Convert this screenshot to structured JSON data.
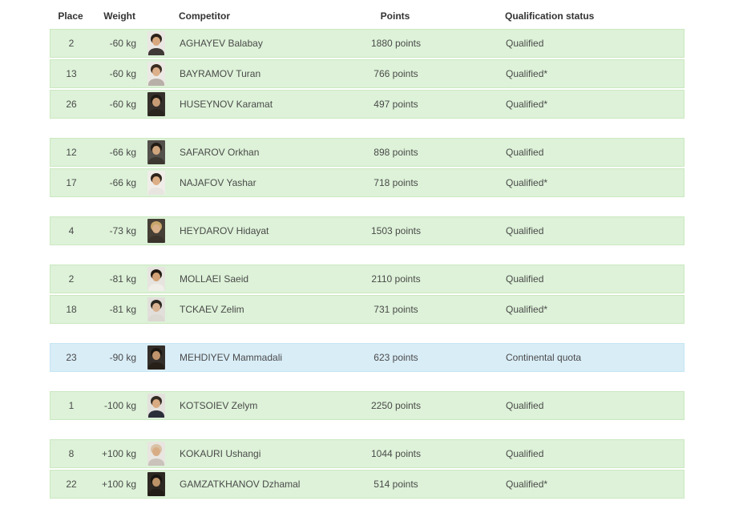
{
  "colors": {
    "page_background": "#ffffff",
    "row_success_bg": "#ddf2d8",
    "row_success_border": "#cbe8c0",
    "row_info_bg": "#d9edf7",
    "row_info_border": "#c3e6f2",
    "header_text": "#333333",
    "body_text": "#4a4a4a"
  },
  "table": {
    "headers": {
      "place": "Place",
      "weight": "Weight",
      "competitor": "Competitor",
      "points": "Points",
      "status": "Qualification status"
    },
    "sections": [
      {
        "weight_class": "-60 kg",
        "rows": [
          {
            "place": "2",
            "weight": "-60 kg",
            "name": "AGHAYEV Balabay",
            "points": "1880 points",
            "status": "Qualified",
            "variant": "success",
            "photo": {
              "bg": "#eae6e2",
              "hair": "#2b2119",
              "skin": "#d8a87f",
              "shirt": "#3f3a36"
            }
          },
          {
            "place": "13",
            "weight": "-60 kg",
            "name": "BAYRAMOV Turan",
            "points": "766 points",
            "status": "Qualified*",
            "variant": "success",
            "photo": {
              "bg": "#ece9e5",
              "hair": "#3a2c20",
              "skin": "#dcb08a",
              "shirt": "#b8b0a8"
            }
          },
          {
            "place": "26",
            "weight": "-60 kg",
            "name": "HUSEYNOV Karamat",
            "points": "497 points",
            "status": "Qualified*",
            "variant": "success",
            "photo": {
              "bg": "#35302b",
              "hair": "#1f1a15",
              "skin": "#c69c77",
              "shirt": "#2a251f"
            }
          }
        ]
      },
      {
        "weight_class": "-66 kg",
        "rows": [
          {
            "place": "12",
            "weight": "-66 kg",
            "name": "SAFAROV Orkhan",
            "points": "898 points",
            "status": "Qualified",
            "variant": "success",
            "photo": {
              "bg": "#54504b",
              "hair": "#231c15",
              "skin": "#cfa57d",
              "shirt": "#3d3831"
            }
          },
          {
            "place": "17",
            "weight": "-66 kg",
            "name": "NAJAFOV Yashar",
            "points": "718 points",
            "status": "Qualified*",
            "variant": "success",
            "photo": {
              "bg": "#f0ede9",
              "hair": "#2e241b",
              "skin": "#dcae85",
              "shirt": "#e8e4df"
            }
          }
        ]
      },
      {
        "weight_class": "-73 kg",
        "rows": [
          {
            "place": "4",
            "weight": "-73 kg",
            "name": "HEYDAROV Hidayat",
            "points": "1503 points",
            "status": "Qualified",
            "variant": "success",
            "photo": {
              "bg": "#453f36",
              "hair": "#c7a66a",
              "skin": "#d8b089",
              "shirt": "#3a342c"
            }
          }
        ]
      },
      {
        "weight_class": "-81 kg",
        "rows": [
          {
            "place": "2",
            "weight": "-81 kg",
            "name": "MOLLAEI Saeid",
            "points": "2110 points",
            "status": "Qualified",
            "variant": "success",
            "photo": {
              "bg": "#e7e4e0",
              "hair": "#221a12",
              "skin": "#d3a276",
              "shirt": "#f0eee9"
            }
          },
          {
            "place": "18",
            "weight": "-81 kg",
            "name": "TCKAEV Zelim",
            "points": "731 points",
            "status": "Qualified*",
            "variant": "success",
            "photo": {
              "bg": "#e2dfdb",
              "hair": "#2c2620",
              "skin": "#d9b292",
              "shirt": "#dcd8d2"
            }
          }
        ]
      },
      {
        "weight_class": "-90 kg",
        "rows": [
          {
            "place": "23",
            "weight": "-90 kg",
            "name": "MEHDIYEV Mammadali",
            "points": "623 points",
            "status": "Continental quota",
            "variant": "info",
            "photo": {
              "bg": "#332e29",
              "hair": "#1c1712",
              "skin": "#c0946c",
              "shirt": "#262019"
            }
          }
        ]
      },
      {
        "weight_class": "-100 kg",
        "rows": [
          {
            "place": "1",
            "weight": "-100 kg",
            "name": "KOTSOIEV Zelym",
            "points": "2250 points",
            "status": "Qualified",
            "variant": "success",
            "photo": {
              "bg": "#e4e1dd",
              "hair": "#332a22",
              "skin": "#d9ab82",
              "shirt": "#2b2f3a"
            }
          }
        ]
      },
      {
        "weight_class": "+100 kg",
        "rows": [
          {
            "place": "8",
            "weight": "+100 kg",
            "name": "KOKAURI Ushangi",
            "points": "1044 points",
            "status": "Qualified",
            "variant": "success",
            "photo": {
              "bg": "#e9e5e0",
              "hair": "#d9c2a6",
              "skin": "#d8ad85",
              "shirt": "#c9c3bb"
            }
          },
          {
            "place": "22",
            "weight": "+100 kg",
            "name": "GAMZATKHANOV Dzhamal",
            "points": "514 points",
            "status": "Qualified*",
            "variant": "success",
            "photo": {
              "bg": "#2d2822",
              "hair": "#191511",
              "skin": "#bd9468",
              "shirt": "#221d17"
            }
          }
        ]
      }
    ]
  }
}
